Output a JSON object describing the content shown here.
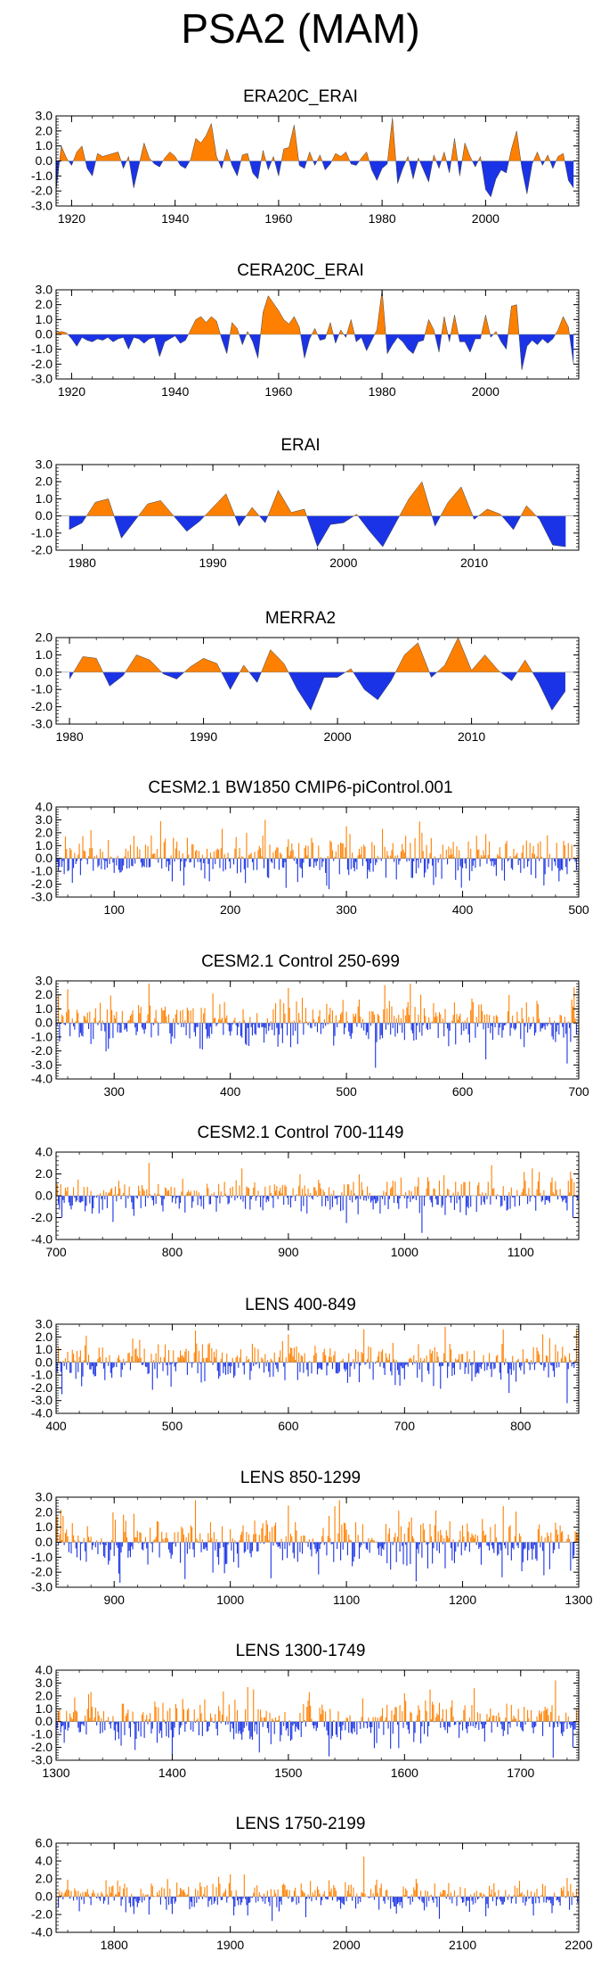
{
  "page_title": "PSA2 (MAM)",
  "colors": {
    "positive": "#ff8000",
    "negative": "#1a33e6",
    "axis": "#000000"
  },
  "chart_data": [
    {
      "type": "area",
      "title": "ERA20C_ERAI",
      "series_style": "filled-anomaly",
      "xlim": [
        1917,
        2018
      ],
      "ylim": [
        -3.0,
        3.0
      ],
      "xticks": [
        1920,
        1940,
        1960,
        1980,
        2000
      ],
      "yticks": [
        3.0,
        2.0,
        1.0,
        0.0,
        -1.0,
        -2.0,
        -3.0
      ],
      "x": [
        1917,
        1918,
        1919,
        1920,
        1921,
        1922,
        1923,
        1924,
        1925,
        1926,
        1927,
        1928,
        1929,
        1930,
        1931,
        1932,
        1933,
        1934,
        1935,
        1936,
        1937,
        1938,
        1939,
        1940,
        1941,
        1942,
        1943,
        1944,
        1945,
        1946,
        1947,
        1948,
        1949,
        1950,
        1951,
        1952,
        1953,
        1954,
        1955,
        1956,
        1957,
        1958,
        1959,
        1960,
        1961,
        1962,
        1963,
        1964,
        1965,
        1966,
        1967,
        1968,
        1969,
        1970,
        1971,
        1972,
        1973,
        1974,
        1975,
        1976,
        1977,
        1978,
        1979,
        1980,
        1981,
        1982,
        1983,
        1984,
        1985,
        1986,
        1987,
        1988,
        1989,
        1990,
        1991,
        1992,
        1993,
        1994,
        1995,
        1996,
        1997,
        1998,
        1999,
        2000,
        2001,
        2002,
        2003,
        2004,
        2005,
        2006,
        2007,
        2008,
        2009,
        2010,
        2011,
        2012,
        2013,
        2014,
        2015,
        2016,
        2017
      ],
      "values": [
        -2.0,
        1.0,
        0.2,
        -0.3,
        0.6,
        1.0,
        -0.5,
        -1.0,
        0.5,
        0.3,
        0.4,
        0.5,
        0.6,
        -0.5,
        0.3,
        -1.8,
        -0.3,
        1.2,
        0.2,
        -0.2,
        -0.4,
        0.2,
        0.6,
        0.3,
        -0.3,
        -0.5,
        0.1,
        1.5,
        1.2,
        1.7,
        2.5,
        0.3,
        -0.5,
        0.8,
        -0.3,
        -1.0,
        0.4,
        0.5,
        -0.8,
        -1.2,
        0.7,
        -0.6,
        0.3,
        -1.0,
        0.8,
        0.9,
        2.4,
        -0.3,
        -0.5,
        0.6,
        -0.3,
        0.4,
        -0.6,
        -0.2,
        0.5,
        0.3,
        0.6,
        -0.2,
        -0.3,
        0.2,
        0.6,
        -0.6,
        -1.3,
        -0.5,
        -0.2,
        2.9,
        -1.5,
        -0.5,
        0.3,
        -1.2,
        0.2,
        -0.6,
        -1.4,
        0.4,
        -0.5,
        0.6,
        -0.8,
        1.5,
        -1.0,
        1.2,
        0.3,
        -0.4,
        0.3,
        -1.9,
        -2.4,
        -1.2,
        -0.6,
        -0.8,
        0.8,
        2.0,
        -0.5,
        -2.2,
        -0.2,
        0.6,
        -0.3,
        0.4,
        -0.5,
        0.3,
        0.5,
        -1.3,
        -1.8
      ]
    },
    {
      "type": "area",
      "title": "CERA20C_ERAI",
      "series_style": "filled-anomaly",
      "xlim": [
        1917,
        2018
      ],
      "ylim": [
        -3.0,
        3.0
      ],
      "xticks": [
        1920,
        1940,
        1960,
        1980,
        2000
      ],
      "yticks": [
        3.0,
        2.0,
        1.0,
        0.0,
        -1.0,
        -2.0,
        -3.0
      ],
      "x": [
        1917,
        1918,
        1919,
        1920,
        1921,
        1922,
        1923,
        1924,
        1925,
        1926,
        1927,
        1928,
        1929,
        1930,
        1931,
        1932,
        1933,
        1934,
        1935,
        1936,
        1937,
        1938,
        1939,
        1940,
        1941,
        1942,
        1943,
        1944,
        1945,
        1946,
        1947,
        1948,
        1949,
        1950,
        1951,
        1952,
        1953,
        1954,
        1955,
        1956,
        1957,
        1958,
        1959,
        1960,
        1961,
        1962,
        1963,
        1964,
        1965,
        1966,
        1967,
        1968,
        1969,
        1970,
        1971,
        1972,
        1973,
        1974,
        1975,
        1976,
        1977,
        1978,
        1979,
        1980,
        1981,
        1982,
        1983,
        1984,
        1985,
        1986,
        1987,
        1988,
        1989,
        1990,
        1991,
        1992,
        1993,
        1994,
        1995,
        1996,
        1997,
        1998,
        1999,
        2000,
        2001,
        2002,
        2003,
        2004,
        2005,
        2006,
        2007,
        2008,
        2009,
        2010,
        2011,
        2012,
        2013,
        2014,
        2015,
        2016,
        2017
      ],
      "values": [
        0.1,
        0.2,
        0.1,
        -0.3,
        -0.8,
        -0.2,
        -0.4,
        -0.5,
        -0.3,
        -0.4,
        -0.2,
        -0.5,
        -0.3,
        -0.2,
        -1.0,
        -0.2,
        -0.3,
        -0.6,
        -0.3,
        -0.2,
        -1.5,
        -0.5,
        -0.3,
        -0.1,
        -0.6,
        -0.4,
        0.3,
        1.0,
        1.2,
        0.8,
        1.2,
        0.9,
        -0.3,
        -1.3,
        0.8,
        0.4,
        -0.7,
        0.2,
        -0.5,
        -1.6,
        1.5,
        2.6,
        2.1,
        1.6,
        1.0,
        0.7,
        1.2,
        0.5,
        -1.6,
        -0.3,
        0.4,
        -0.4,
        -0.3,
        0.8,
        -0.6,
        0.3,
        -0.2,
        1.0,
        -0.5,
        -0.2,
        -1.1,
        -0.4,
        0.3,
        3.0,
        -1.3,
        -0.7,
        -0.2,
        -0.5,
        -1.0,
        -1.3,
        -0.5,
        -0.4,
        1.0,
        0.3,
        -1.2,
        1.2,
        -0.5,
        1.3,
        -0.5,
        -0.5,
        -1.2,
        -0.3,
        -0.3,
        1.3,
        -0.2,
        0.2,
        -0.5,
        -1.0,
        1.9,
        2.0,
        -2.4,
        -0.8,
        -0.4,
        -0.7,
        -0.3,
        -0.6,
        -0.3,
        0.3,
        1.2,
        0.5,
        -2.0
      ]
    },
    {
      "type": "area",
      "title": "ERAI",
      "series_style": "filled-anomaly",
      "xlim": [
        1978,
        2018
      ],
      "ylim": [
        -2.0,
        3.0
      ],
      "xticks": [
        1980,
        1990,
        2000,
        2010
      ],
      "yticks": [
        3.0,
        2.0,
        1.0,
        0.0,
        -1.0,
        -2.0
      ],
      "x": [
        1979,
        1980,
        1981,
        1982,
        1983,
        1984,
        1985,
        1986,
        1987,
        1988,
        1989,
        1990,
        1991,
        1992,
        1993,
        1994,
        1995,
        1996,
        1997,
        1998,
        1999,
        2000,
        2001,
        2002,
        2003,
        2004,
        2005,
        2006,
        2007,
        2008,
        2009,
        2010,
        2011,
        2012,
        2013,
        2014,
        2015,
        2016,
        2017
      ],
      "values": [
        -0.8,
        -0.4,
        0.8,
        1.0,
        -1.3,
        -0.3,
        0.7,
        0.9,
        0.0,
        -0.9,
        -0.3,
        0.5,
        1.3,
        -0.6,
        0.5,
        -0.4,
        1.5,
        0.2,
        0.4,
        -1.8,
        -0.5,
        -0.4,
        0.1,
        -0.9,
        -1.8,
        -0.4,
        1.0,
        2.0,
        -0.6,
        0.8,
        1.7,
        -0.2,
        0.4,
        0.1,
        -0.8,
        0.6,
        -0.2,
        -1.7,
        -1.8
      ]
    },
    {
      "type": "area",
      "title": "MERRA2",
      "series_style": "filled-anomaly",
      "xlim": [
        1979,
        2018
      ],
      "ylim": [
        -3.0,
        2.0
      ],
      "xticks": [
        1980,
        1990,
        2000,
        2010
      ],
      "yticks": [
        2.0,
        1.0,
        0.0,
        -1.0,
        -2.0,
        -3.0
      ],
      "x": [
        1980,
        1981,
        1982,
        1983,
        1984,
        1985,
        1986,
        1987,
        1988,
        1989,
        1990,
        1991,
        1992,
        1993,
        1994,
        1995,
        1996,
        1997,
        1998,
        1999,
        2000,
        2001,
        2002,
        2003,
        2004,
        2005,
        2006,
        2007,
        2008,
        2009,
        2010,
        2011,
        2012,
        2013,
        2014,
        2015,
        2016,
        2017
      ],
      "values": [
        -0.4,
        0.9,
        0.8,
        -0.8,
        -0.2,
        1.0,
        0.7,
        -0.1,
        -0.4,
        0.3,
        0.8,
        0.5,
        -1.0,
        0.4,
        -0.6,
        1.3,
        0.5,
        -1.0,
        -2.2,
        -0.3,
        -0.3,
        0.2,
        -1.0,
        -1.6,
        -0.5,
        1.0,
        1.7,
        -0.3,
        0.4,
        2.0,
        0.1,
        1.0,
        0.1,
        -0.5,
        0.7,
        -0.6,
        -2.2,
        -1.1
      ]
    },
    {
      "type": "bar",
      "title": "CESM2.1 BW1850 CMIP6-piControl.001",
      "series_style": "dense-anomaly-bars",
      "xlim": [
        50,
        500
      ],
      "ylim": [
        -3.0,
        4.0
      ],
      "xticks": [
        100,
        200,
        300,
        400,
        500
      ],
      "yticks": [
        4.0,
        3.0,
        2.0,
        1.0,
        0.0,
        -1.0,
        -2.0,
        -3.0
      ],
      "sample_points": {
        "x": [
          80,
          140,
          160,
          230,
          300,
          365,
          420,
          470
        ],
        "values": [
          2.2,
          2.9,
          -2.1,
          3.0,
          2.5,
          2.0,
          1.9,
          -2.1
        ]
      }
    },
    {
      "type": "bar",
      "title": "CESM2.1 Control 250-699",
      "series_style": "dense-anomaly-bars",
      "xlim": [
        250,
        700
      ],
      "ylim": [
        -4.0,
        3.0
      ],
      "xticks": [
        300,
        400,
        500,
        600,
        700
      ],
      "yticks": [
        3.0,
        2.0,
        1.0,
        0.0,
        -1.0,
        -2.0,
        -3.0,
        -4.0
      ],
      "sample_points": {
        "x": [
          260,
          330,
          385,
          450,
          525,
          555,
          620,
          690
        ],
        "values": [
          2.4,
          2.8,
          2.1,
          2.5,
          -3.2,
          2.8,
          -2.6,
          -2.9
        ]
      }
    },
    {
      "type": "bar",
      "title": "CESM2.1 Control 700-1149",
      "series_style": "dense-anomaly-bars",
      "xlim": [
        700,
        1150
      ],
      "ylim": [
        -4.0,
        4.0
      ],
      "xticks": [
        700,
        800,
        900,
        1000,
        1100
      ],
      "yticks": [
        4.0,
        2.0,
        0.0,
        -2.0,
        -4.0
      ],
      "sample_points": {
        "x": [
          705,
          780,
          860,
          950,
          1015,
          1075,
          1110,
          1145
        ],
        "values": [
          -2.0,
          3.0,
          2.5,
          -2.5,
          -3.4,
          2.8,
          2.5,
          -2.0
        ]
      }
    },
    {
      "type": "bar",
      "title": "LENS 400-849",
      "series_style": "dense-anomaly-bars",
      "xlim": [
        400,
        850
      ],
      "ylim": [
        -4.0,
        3.0
      ],
      "xticks": [
        400,
        500,
        600,
        700,
        800
      ],
      "yticks": [
        3.0,
        2.0,
        1.0,
        0.0,
        -1.0,
        -2.0,
        -3.0,
        -4.0
      ],
      "sample_points": {
        "x": [
          405,
          520,
          600,
          665,
          735,
          790,
          840,
          848
        ],
        "values": [
          -2.5,
          2.5,
          2.2,
          2.6,
          2.8,
          -2.4,
          -3.2,
          2.6
        ]
      }
    },
    {
      "type": "bar",
      "title": "LENS 850-1299",
      "series_style": "dense-anomaly-bars",
      "xlim": [
        850,
        1300
      ],
      "ylim": [
        -3.0,
        3.0
      ],
      "xticks": [
        900,
        1000,
        1100,
        1200,
        1300
      ],
      "yticks": [
        3.0,
        2.0,
        1.0,
        0.0,
        -1.0,
        -2.0,
        -3.0
      ],
      "sample_points": {
        "x": [
          905,
          970,
          1035,
          1090,
          1145,
          1160,
          1235,
          1270
        ],
        "values": [
          -2.7,
          3.0,
          -2.4,
          2.4,
          2.1,
          -2.6,
          2.4,
          -2.2
        ]
      }
    },
    {
      "type": "bar",
      "title": "LENS 1300-1749",
      "series_style": "dense-anomaly-bars",
      "xlim": [
        1300,
        1750
      ],
      "ylim": [
        -3.0,
        4.0
      ],
      "xticks": [
        1300,
        1400,
        1500,
        1600,
        1700
      ],
      "yticks": [
        4.0,
        3.0,
        2.0,
        1.0,
        0.0,
        -1.0,
        -2.0,
        -3.0
      ],
      "sample_points": {
        "x": [
          1330,
          1400,
          1470,
          1535,
          1600,
          1660,
          1730,
          1745
        ],
        "values": [
          2.3,
          -2.6,
          2.5,
          -2.7,
          2.2,
          2.6,
          3.2,
          -2.0
        ]
      }
    },
    {
      "type": "bar",
      "title": "LENS 1750-2199",
      "series_style": "dense-anomaly-bars",
      "xlim": [
        1750,
        2200
      ],
      "ylim": [
        -4.0,
        6.0
      ],
      "xticks": [
        1800,
        1900,
        2000,
        2100,
        2200
      ],
      "yticks": [
        6.0,
        4.0,
        2.0,
        0.0,
        -2.0,
        -4.0
      ],
      "sample_points": {
        "x": [
          1760,
          1830,
          1900,
          1965,
          2015,
          2060,
          2120,
          2190
        ],
        "values": [
          1.9,
          -2.0,
          2.5,
          -2.3,
          4.5,
          2.0,
          -2.2,
          2.1
        ]
      }
    }
  ]
}
